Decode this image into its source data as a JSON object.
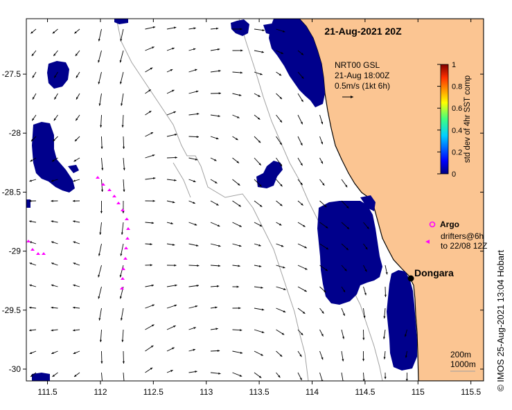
{
  "map": {
    "title": "21-Aug-2021 20Z",
    "credit": "© IMOS 25-Aug-2021 13:04 Hobart",
    "lon_ticks": [
      "111.5",
      "112",
      "112.5",
      "113",
      "113.5",
      "114",
      "114.5",
      "115",
      "115.5"
    ],
    "lat_ticks": [
      "-27.5",
      "-28",
      "-28.5",
      "-29",
      "-29.5",
      "-30"
    ],
    "lon_range": [
      111.3,
      115.62
    ],
    "lat_range": [
      -30.1,
      -27.03
    ],
    "current_legend": {
      "line1": "NRT00 GSL",
      "line2": "21-Aug 18:00Z",
      "line3": "0.5m/s (1kt 6h)"
    },
    "colorbar": {
      "label": "std dev of 4hr SST comp",
      "ticks": [
        "1",
        "0.8",
        "0.6",
        "0.4",
        "0.2",
        "0"
      ]
    },
    "argo_label": "Argo",
    "drifter_line1": "drifters@6h",
    "drifter_line2": "to 22/08 12Z",
    "place": {
      "name": "Dongara",
      "lon": 114.93,
      "lat": -29.25
    },
    "isobaths": {
      "line1": "200m",
      "line2": "1000m"
    },
    "colors": {
      "land": "#fbc592",
      "mask": "#00008c",
      "drifter": "#ff00ff",
      "isobath": "#a0a0a0"
    }
  }
}
